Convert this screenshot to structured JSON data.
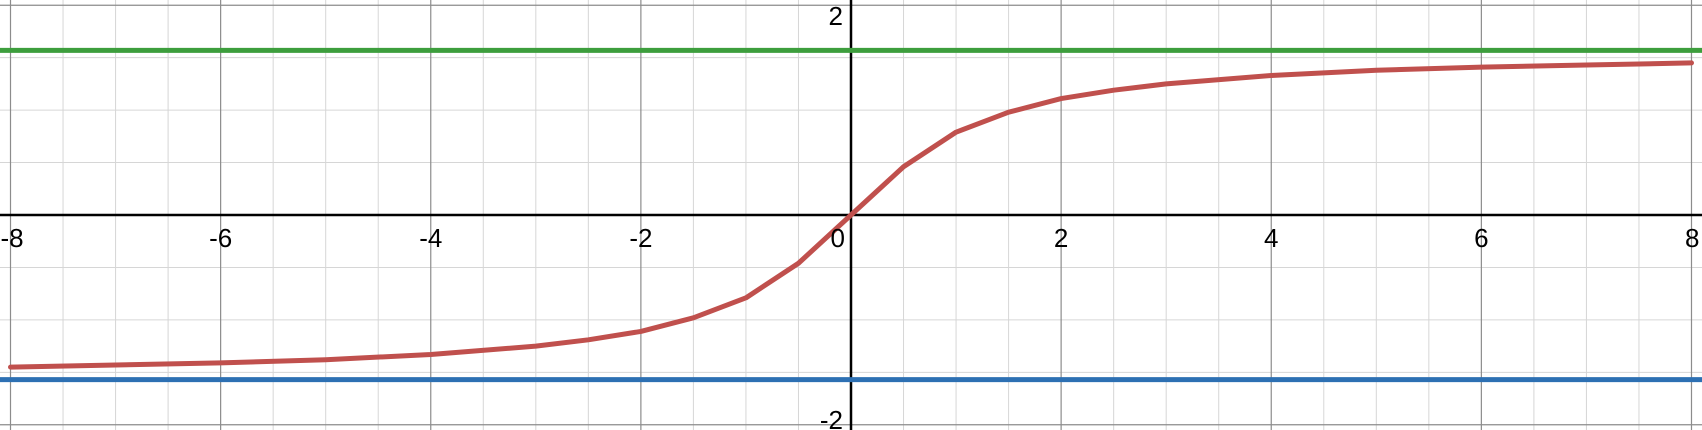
{
  "chart_data": {
    "type": "line",
    "title": "",
    "xlabel": "",
    "ylabel": "",
    "xlim": [
      -8.1,
      8.1
    ],
    "ylim": [
      -2.05,
      2.05
    ],
    "grid": true,
    "x_major_ticks": [
      -8,
      -6,
      -4,
      -2,
      0,
      2,
      4,
      6,
      8
    ],
    "x_tick_labels": [
      "-8",
      "-6",
      "-4",
      "-2",
      "0",
      "2",
      "4",
      "6",
      "8"
    ],
    "y_tick_labels_visible": [
      "2",
      "-2"
    ],
    "y_major_ticks": [
      -2,
      2
    ],
    "series": [
      {
        "color": "#c0504d",
        "x": [
          -8,
          -7,
          -6,
          -5,
          -4,
          -3,
          -2.5,
          -2,
          -1.5,
          -1,
          -0.5,
          0,
          0.5,
          1,
          1.5,
          2,
          2.5,
          3,
          4,
          5,
          6,
          7,
          8
        ],
        "y": [
          -1.45,
          -1.43,
          -1.41,
          -1.38,
          -1.33,
          -1.25,
          -1.19,
          -1.11,
          -0.98,
          -0.79,
          -0.46,
          0,
          0.46,
          0.79,
          0.98,
          1.11,
          1.19,
          1.25,
          1.33,
          1.38,
          1.41,
          1.43,
          1.45
        ]
      },
      {
        "color": "#3d9e3d",
        "x": [
          -8.1,
          8.1
        ],
        "y": [
          1.57,
          1.57
        ]
      },
      {
        "color": "#2d70b3",
        "x": [
          -8.1,
          8.1
        ],
        "y": [
          -1.57,
          -1.57
        ]
      }
    ]
  }
}
